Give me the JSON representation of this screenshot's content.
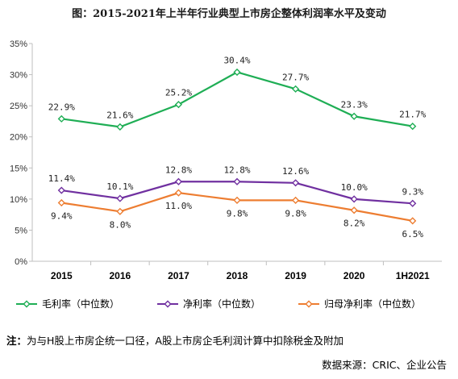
{
  "title": "图：2015-2021年上半年行业典型上市房企整体利润率水平及变动",
  "chart_data": {
    "type": "line",
    "categories": [
      "2015",
      "2016",
      "2017",
      "2018",
      "2019",
      "2020",
      "1H2021"
    ],
    "ylim": [
      0,
      35
    ],
    "yticks": [
      "0%",
      "5%",
      "10%",
      "15%",
      "20%",
      "25%",
      "30%",
      "35%"
    ],
    "grid": false,
    "legend_position": "bottom",
    "series": [
      {
        "name": "毛利率（中位数）",
        "color": "#1fae55",
        "values": [
          22.9,
          21.6,
          25.2,
          30.4,
          27.7,
          23.3,
          21.7
        ],
        "labels": [
          "22.9%",
          "21.6%",
          "25.2%",
          "30.4%",
          "27.7%",
          "23.3%",
          "21.7%"
        ],
        "label_pos": "above"
      },
      {
        "name": "净利率（中位数）",
        "color": "#7030a0",
        "values": [
          11.4,
          10.1,
          12.8,
          12.8,
          12.6,
          10.0,
          9.3
        ],
        "labels": [
          "11.4%",
          "10.1%",
          "12.8%",
          "12.8%",
          "12.6%",
          "10.0%",
          "9.3%"
        ],
        "label_pos": "above"
      },
      {
        "name": "归母净利率（中位数）",
        "color": "#ed7d31",
        "values": [
          9.4,
          8.0,
          11.0,
          9.8,
          9.8,
          8.2,
          6.5
        ],
        "labels": [
          "9.4%",
          "8.0%",
          "11.0%",
          "9.8%",
          "9.8%",
          "8.2%",
          "6.5%"
        ],
        "label_pos": "below"
      }
    ]
  },
  "note": {
    "prefix": "注：",
    "text": "为与H股上市房企统一口径，A股上市房企毛利润计算中扣除税金及附加"
  },
  "source": "数据来源：CRIC、企业公告"
}
